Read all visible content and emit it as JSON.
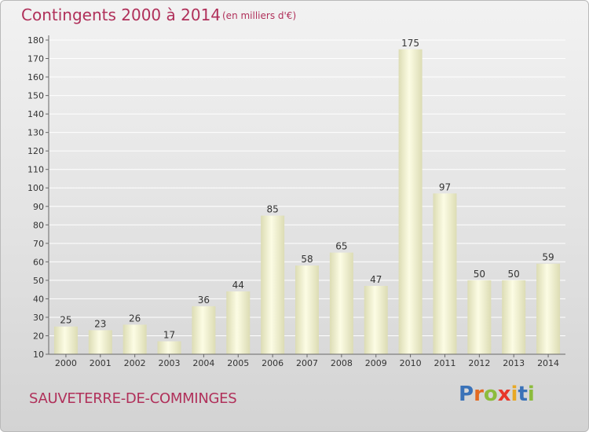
{
  "header": {
    "title": "Contingents 2000 à 2014",
    "subtitle": "(en milliers d'€)"
  },
  "footer": {
    "town": "SAUVETERRE-DE-COMMINGES",
    "brand": "Proxiti"
  },
  "colors": {
    "title": "#b0305a",
    "bar_light": "#fcfce4",
    "bar_dark": "#dcdcb4",
    "brand_letters": [
      "#3a72b8",
      "#e36a22",
      "#8cbc3c",
      "#e8362a",
      "#e8a824",
      "#3a72b8",
      "#8cbc3c"
    ]
  },
  "chart_data": {
    "type": "bar",
    "categories": [
      "2000",
      "2001",
      "2002",
      "2003",
      "2004",
      "2005",
      "2006",
      "2007",
      "2008",
      "2009",
      "2010",
      "2011",
      "2012",
      "2013",
      "2014"
    ],
    "values": [
      25,
      23,
      26,
      17,
      36,
      44,
      85,
      58,
      65,
      47,
      175,
      97,
      50,
      50,
      59
    ],
    "title": "Contingents 2000 à 2014",
    "subtitle": "(en milliers d'€)",
    "xlabel": "",
    "ylabel": "",
    "ylim": [
      10,
      180
    ],
    "yticks": [
      10,
      20,
      30,
      40,
      50,
      60,
      70,
      80,
      90,
      100,
      110,
      120,
      130,
      140,
      150,
      160,
      170,
      180
    ],
    "grid": true,
    "legend": "none"
  }
}
